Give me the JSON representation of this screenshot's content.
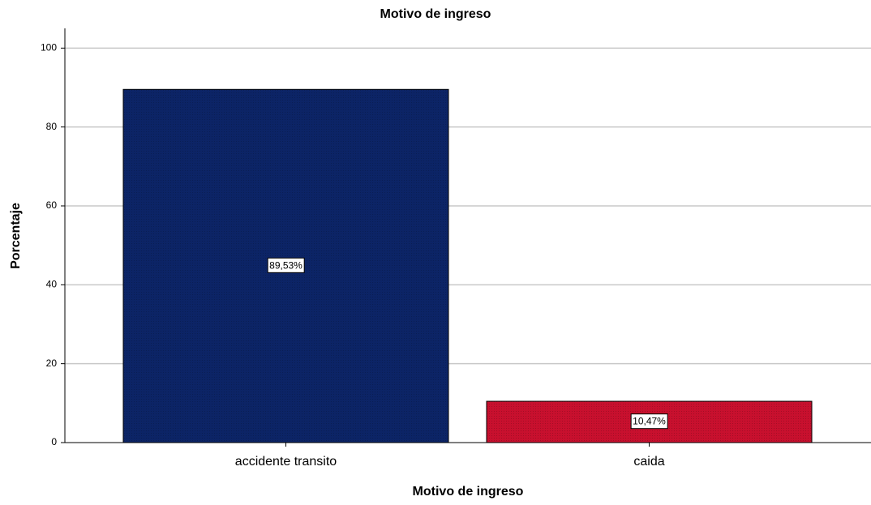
{
  "chart_data": {
    "type": "bar",
    "title": "Motivo de ingreso",
    "x_label": "Motivo de ingreso",
    "y_label": "Porcentaje",
    "categories": [
      "accidente transito",
      "caida"
    ],
    "values": [
      89.53,
      10.47
    ],
    "value_labels": [
      "89,53%",
      "10,47%"
    ],
    "colors": [
      "#0c2466",
      "#c8102e"
    ],
    "ylim": [
      0,
      105
    ],
    "yticks": [
      0,
      20,
      40,
      60,
      80,
      100
    ],
    "grid": true
  }
}
